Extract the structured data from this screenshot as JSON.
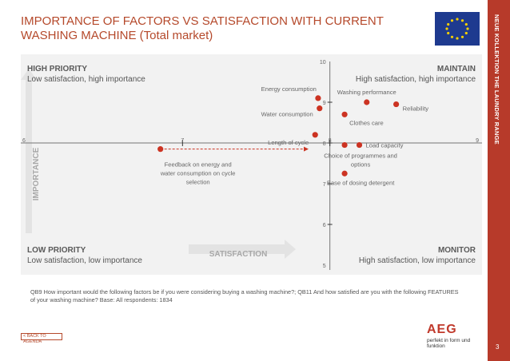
{
  "header": {
    "title_line1": "IMPORTANCE OF FACTORS VS SATISFACTION WITH CURRENT",
    "title_line2": "WASHING MACHINE (Total market)"
  },
  "side_banner": {
    "text": "NEUE KOLLEKTION THE LAUNDRY RANGE",
    "page_number": "3"
  },
  "quadrants": {
    "top_left": {
      "title": "HIGH PRIORITY",
      "subtitle": "Low satisfaction, high importance"
    },
    "top_right": {
      "title": "MAINTAIN",
      "subtitle": "High satisfaction, high importance"
    },
    "bottom_left": {
      "title": "LOW PRIORITY",
      "subtitle": "Low satisfaction, low importance"
    },
    "bottom_right": {
      "title": "MONITOR",
      "subtitle": "High satisfaction, low importance"
    }
  },
  "chart_data": {
    "type": "scatter",
    "xlabel": "SATISFACTION",
    "ylabel": "IMPORTANCE",
    "xlim": [
      6,
      9
    ],
    "ylim": [
      5,
      10
    ],
    "x_ticks": [
      "6",
      "7",
      "8",
      "9"
    ],
    "y_ticks": [
      "5",
      "6",
      "7",
      "8",
      "9",
      "10"
    ],
    "axis_cross": {
      "x": 8,
      "y": 8
    },
    "points": [
      {
        "label": "Energy consumption",
        "x": 7.92,
        "y": 9.1
      },
      {
        "label": "Water consumption",
        "x": 7.93,
        "y": 8.85
      },
      {
        "label": "Washing performance",
        "x": 8.25,
        "y": 9.0
      },
      {
        "label": "Reliability",
        "x": 8.45,
        "y": 8.95
      },
      {
        "label": "Clothes care",
        "x": 8.1,
        "y": 8.7
      },
      {
        "label": "Length of cycle",
        "x": 7.9,
        "y": 8.2
      },
      {
        "label": "Load capacity",
        "x": 8.2,
        "y": 7.95
      },
      {
        "label": "Choice of programmes and options",
        "x": 8.1,
        "y": 7.95
      },
      {
        "label": "Ease of dosing detergent",
        "x": 8.1,
        "y": 7.25
      },
      {
        "label": "Feedback on energy and water consumption on cycle selection",
        "x": 6.85,
        "y": 7.85
      }
    ],
    "arrow": {
      "from_x": 6.85,
      "to_x": 7.85,
      "y": 7.85
    },
    "colors": {
      "point": "#cc3322",
      "arrow": "#cc3322",
      "axis": "#777777"
    }
  },
  "footer": {
    "note": "QB9  How important would the following factors be if you were considering buying a washing machine?; QB11  And how satisfied are you with the following FEATURES of your washing machine? Base: All respondents: 1834",
    "back_link": "< BACK TO AGENDA",
    "logo_mark": "AEG",
    "logo_tagline": "perfekt in form und funktion"
  }
}
